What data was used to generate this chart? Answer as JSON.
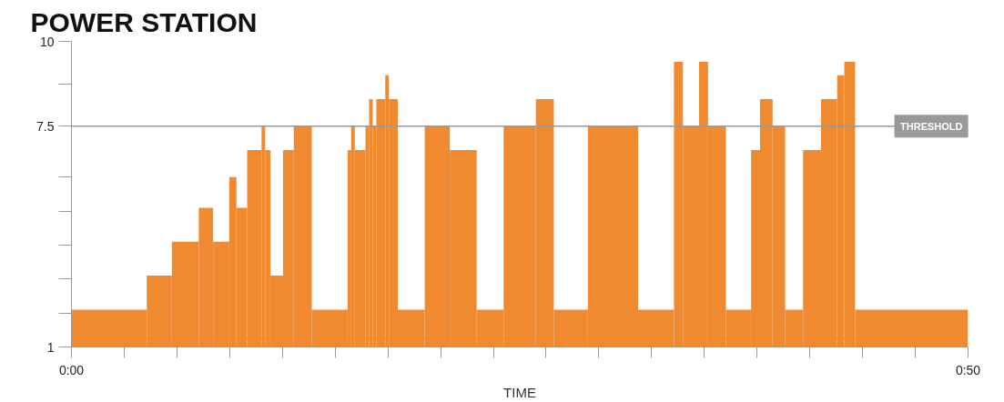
{
  "chart_data": {
    "type": "histogram",
    "title": "POWER STATION",
    "xlabel": "TIME",
    "bins": [
      0,
      4.2,
      5.6,
      7.1,
      7.9,
      8.8,
      9.2,
      9.8,
      10.6,
      10.8,
      11.1,
      11.8,
      12.4,
      13.4,
      15.4,
      15.6,
      15.8,
      16.4,
      16.6,
      16.8,
      17.0,
      17.5,
      17.7,
      18.2,
      19.7,
      21.1,
      22.6,
      24.1,
      25.9,
      26.9,
      28.8,
      31.6,
      33.6,
      34.1,
      35.0,
      35.5,
      36.5,
      37.9,
      38.4,
      39.1,
      39.8,
      40.8,
      41.8,
      42.7,
      43.1,
      43.7,
      50
    ],
    "values": [
      2.1,
      3.1,
      4.1,
      5.1,
      4.1,
      6.0,
      5.1,
      6.8,
      7.5,
      6.8,
      3.1,
      6.8,
      7.5,
      2.1,
      6.8,
      7.5,
      6.8,
      7.5,
      8.3,
      7.5,
      8.3,
      9.0,
      8.3,
      2.1,
      7.5,
      6.8,
      2.1,
      7.5,
      8.3,
      2.1,
      7.5,
      2.1,
      9.4,
      7.5,
      9.4,
      7.5,
      2.1,
      6.8,
      8.3,
      7.5,
      2.1,
      6.8,
      8.3,
      9.0,
      9.4,
      2.1
    ],
    "color": "#f08a30",
    "xlim": [
      0,
      50
    ],
    "xticks": [
      {
        "value": 0,
        "label": "0:00"
      },
      {
        "value": 2.94,
        "label": null
      },
      {
        "value": 5.88,
        "label": null
      },
      {
        "value": 8.82,
        "label": null
      },
      {
        "value": 11.76,
        "label": null
      },
      {
        "value": 14.71,
        "label": null
      },
      {
        "value": 17.65,
        "label": null
      },
      {
        "value": 20.59,
        "label": null
      },
      {
        "value": 23.53,
        "label": null
      },
      {
        "value": 26.47,
        "label": null
      },
      {
        "value": 29.41,
        "label": null
      },
      {
        "value": 32.35,
        "label": null
      },
      {
        "value": 35.29,
        "label": null
      },
      {
        "value": 38.24,
        "label": null
      },
      {
        "value": 41.18,
        "label": null
      },
      {
        "value": 44.12,
        "label": null
      },
      {
        "value": 47.06,
        "label": null
      },
      {
        "value": 50,
        "label": "0:50"
      }
    ],
    "ylim": [
      1,
      10
    ],
    "yticks": [
      1,
      {
        "value": 2,
        "label": null
      },
      {
        "value": 3,
        "label": null
      },
      {
        "value": 4,
        "label": null
      },
      {
        "value": 5,
        "label": null
      },
      {
        "value": 6,
        "label": null
      },
      7.5,
      {
        "value": 8.75,
        "label": null
      },
      10
    ],
    "ref_lines": [
      {
        "axis": "y",
        "value": 7.5,
        "label": "THRESHOLD",
        "color": "#999999"
      }
    ],
    "grid": false
  }
}
